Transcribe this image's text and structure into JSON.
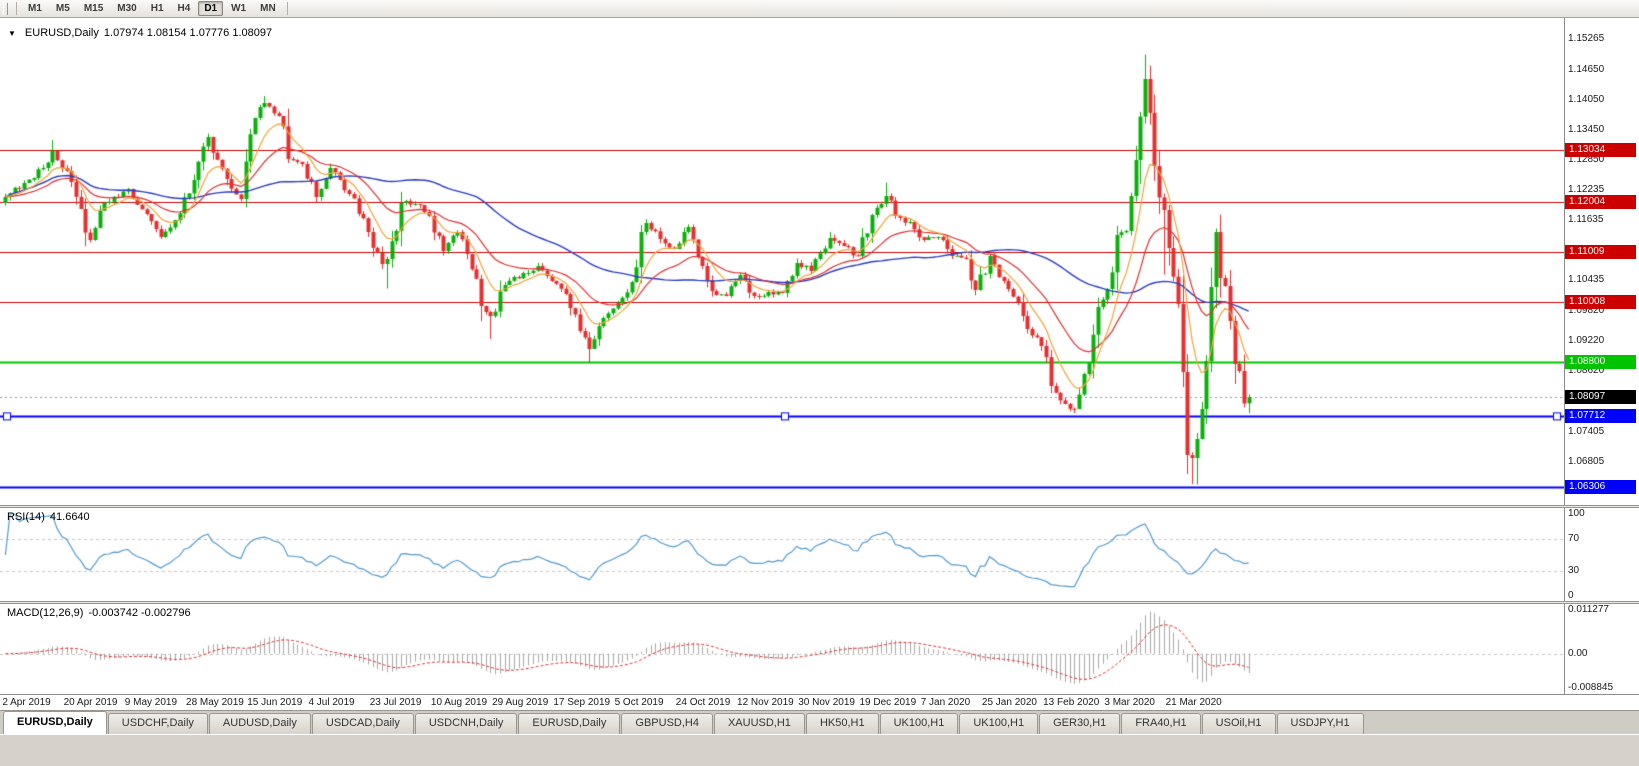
{
  "toolbar": {
    "timeframes": [
      "M1",
      "M5",
      "M15",
      "M30",
      "H1",
      "H4",
      "D1",
      "W1",
      "MN"
    ],
    "active_timeframe": "D1"
  },
  "chart_header": {
    "symbol": "EURUSD,Daily",
    "ohlc": "1.07974 1.08154 1.07776 1.08097"
  },
  "indicators": {
    "rsi_title": "RSI(14)",
    "rsi_value": "41.6640",
    "macd_title": "MACD(12,26,9)",
    "macd_value": "-0.003742 -0.002796"
  },
  "axes": {
    "price_ticks": [
      "1.15265",
      "1.14650",
      "1.14050",
      "1.13450",
      "1.12850",
      "1.12235",
      "1.11635",
      "1.10435",
      "1.09820",
      "1.09220",
      "1.08620",
      "1.07405",
      "1.06805"
    ],
    "rsi_ticks": [
      "100",
      "70",
      "30",
      "0"
    ],
    "macd_ticks": [
      "0.011277",
      "0.00",
      "-0.008845"
    ],
    "dates": [
      "2 Apr 2019",
      "20 Apr 2019",
      "9 May 2019",
      "28 May 2019",
      "15 Jun 2019",
      "4 Jul 2019",
      "23 Jul 2019",
      "10 Aug 2019",
      "29 Aug 2019",
      "17 Sep 2019",
      "5 Oct 2019",
      "24 Oct 2019",
      "12 Nov 2019",
      "30 Nov 2019",
      "19 Dec 2019",
      "7 Jan 2020",
      "25 Jan 2020",
      "13 Feb 2020",
      "3 Mar 2020",
      "21 Mar 2020"
    ]
  },
  "levels": [
    {
      "price": 1.13034,
      "label": "1.13034",
      "color": "#cc0000",
      "width": 1,
      "selected": false
    },
    {
      "price": 1.12004,
      "label": "1.12004",
      "color": "#cc0000",
      "width": 1,
      "selected": false
    },
    {
      "price": 1.11009,
      "label": "1.11009",
      "color": "#cc0000",
      "width": 1,
      "selected": false
    },
    {
      "price": 1.10008,
      "label": "1.10008",
      "color": "#cc0000",
      "width": 1,
      "selected": false
    },
    {
      "price": 1.088,
      "label": "1.08800",
      "color": "#00c400",
      "width": 2,
      "selected": false
    },
    {
      "price": 1.07712,
      "label": "1.07712",
      "color": "#0000ff",
      "width": 2,
      "selected": true
    },
    {
      "price": 1.06306,
      "label": "1.06306",
      "color": "#0000ff",
      "width": 2,
      "selected": false
    }
  ],
  "current_price": {
    "value": 1.08097,
    "label": "1.08097"
  },
  "colors": {
    "candle_up": "#0cb00c",
    "candle_down": "#e53030",
    "ma_fast": "#f2a33c",
    "ma_medium": "#e03030",
    "ma_slow": "#2b3dc4",
    "rsi_line": "#529bd2",
    "macd_hist": "#a9a9a9",
    "macd_signal": "#e03030",
    "badge_current_bg": "#000000"
  },
  "chart_data": {
    "type": "candlestick",
    "symbol": "EURUSD",
    "timeframe": "Daily",
    "candles_total": 265,
    "price_path": [
      [
        0,
        1.121
      ],
      [
        4,
        1.1238
      ],
      [
        8,
        1.1268
      ],
      [
        10,
        1.1302
      ],
      [
        13,
        1.1262
      ],
      [
        16,
        1.1186
      ],
      [
        18,
        1.1124
      ],
      [
        21,
        1.1198
      ],
      [
        26,
        1.1226
      ],
      [
        30,
        1.1176
      ],
      [
        33,
        1.113
      ],
      [
        36,
        1.1164
      ],
      [
        40,
        1.1244
      ],
      [
        43,
        1.133
      ],
      [
        47,
        1.1246
      ],
      [
        50,
        1.1206
      ],
      [
        53,
        1.1368
      ],
      [
        55,
        1.1398
      ],
      [
        58,
        1.1372
      ],
      [
        60,
        1.1286
      ],
      [
        63,
        1.1276
      ],
      [
        66,
        1.121
      ],
      [
        69,
        1.1268
      ],
      [
        73,
        1.1216
      ],
      [
        77,
        1.114
      ],
      [
        80,
        1.1076
      ],
      [
        81,
        1.1086
      ],
      [
        84,
        1.1198
      ],
      [
        88,
        1.1194
      ],
      [
        90,
        1.1172
      ],
      [
        93,
        1.1102
      ],
      [
        96,
        1.114
      ],
      [
        98,
        1.1096
      ],
      [
        101,
        1.0992
      ],
      [
        103,
        1.0972
      ],
      [
        106,
        1.1034
      ],
      [
        110,
        1.1058
      ],
      [
        113,
        1.1072
      ],
      [
        116,
        1.1042
      ],
      [
        119,
        1.1016
      ],
      [
        122,
        1.0942
      ],
      [
        124,
        1.0906
      ],
      [
        127,
        1.0968
      ],
      [
        130,
        1.0998
      ],
      [
        133,
        1.104
      ],
      [
        136,
        1.1158
      ],
      [
        139,
        1.1126
      ],
      [
        142,
        1.1106
      ],
      [
        145,
        1.115
      ],
      [
        148,
        1.1072
      ],
      [
        150,
        1.1022
      ],
      [
        153,
        1.1012
      ],
      [
        156,
        1.1054
      ],
      [
        159,
        1.1012
      ],
      [
        162,
        1.102
      ],
      [
        165,
        1.1018
      ],
      [
        168,
        1.1078
      ],
      [
        171,
        1.1062
      ],
      [
        175,
        1.1128
      ],
      [
        178,
        1.1112
      ],
      [
        181,
        1.1092
      ],
      [
        184,
        1.1174
      ],
      [
        187,
        1.1212
      ],
      [
        189,
        1.1172
      ],
      [
        192,
        1.116
      ],
      [
        195,
        1.1124
      ],
      [
        198,
        1.113
      ],
      [
        201,
        1.1092
      ],
      [
        204,
        1.1086
      ],
      [
        206,
        1.1024
      ],
      [
        209,
        1.1092
      ],
      [
        212,
        1.1042
      ],
      [
        215,
        1.1
      ],
      [
        217,
        1.0946
      ],
      [
        220,
        1.0912
      ],
      [
        222,
        1.0832
      ],
      [
        225,
        1.0796
      ],
      [
        227,
        1.0786
      ],
      [
        229,
        1.0856
      ],
      [
        232,
        1.099
      ],
      [
        234,
        1.1026
      ],
      [
        236,
        1.1134
      ],
      [
        238,
        1.1142
      ],
      [
        240,
        1.1284
      ],
      [
        242,
        1.1446
      ],
      [
        244,
        1.1272
      ],
      [
        246,
        1.1184
      ],
      [
        247,
        1.1108
      ],
      [
        249,
        1.0996
      ],
      [
        250,
        1.086
      ],
      [
        251,
        1.0694
      ],
      [
        252,
        1.0688
      ],
      [
        253,
        1.0726
      ],
      [
        254,
        1.0786
      ],
      [
        255,
        1.0882
      ],
      [
        256,
        1.103
      ],
      [
        257,
        1.114
      ],
      [
        258,
        1.1048
      ],
      [
        259,
        1.1032
      ],
      [
        260,
        1.0962
      ],
      [
        261,
        1.0876
      ],
      [
        262,
        1.0862
      ],
      [
        263,
        1.0797
      ],
      [
        264,
        1.08097
      ]
    ],
    "wick_overrides": [
      [
        10,
        "h",
        1.1324
      ],
      [
        55,
        "h",
        1.1412
      ],
      [
        81,
        "l",
        1.1027
      ],
      [
        103,
        "l",
        1.0926
      ],
      [
        124,
        "l",
        1.0879
      ],
      [
        187,
        "h",
        1.1239
      ],
      [
        227,
        "l",
        1.0778
      ],
      [
        242,
        "h",
        1.1495
      ],
      [
        246,
        "l",
        1.1055
      ],
      [
        251,
        "l",
        1.0656
      ],
      [
        252,
        "l",
        1.0636
      ],
      [
        253,
        "l",
        1.0635
      ],
      [
        257,
        "h",
        1.1147
      ]
    ],
    "last_candle": {
      "o": 1.07974,
      "h": 1.08154,
      "l": 1.07776,
      "c": 1.08097
    },
    "moving_averages": [
      {
        "name": "fast",
        "type": "ema",
        "period": 8,
        "color": "#f2a33c"
      },
      {
        "name": "medium",
        "type": "ema",
        "period": 21,
        "color": "#e03030"
      },
      {
        "name": "slow",
        "type": "sma",
        "period": 50,
        "color": "#2b3dc4"
      }
    ],
    "rsi": {
      "period": 14,
      "current": 41.664,
      "levels": [
        70,
        30
      ],
      "range": [
        0,
        100
      ]
    },
    "macd": {
      "fast": 12,
      "slow": 26,
      "signal": 9,
      "current_macd": -0.003742,
      "current_signal": -0.002796
    },
    "scale": {
      "price_min": 1.0592,
      "price_max": 1.1568,
      "macd_max": 0.011277,
      "macd_min": -0.008845
    }
  },
  "tabs": [
    {
      "label": "EURUSD,Daily",
      "active": true
    },
    {
      "label": "USDCHF,Daily",
      "active": false
    },
    {
      "label": "AUDUSD,Daily",
      "active": false
    },
    {
      "label": "USDCAD,Daily",
      "active": false
    },
    {
      "label": "USDCNH,Daily",
      "active": false
    },
    {
      "label": "EURUSD,Daily",
      "active": false
    },
    {
      "label": "GBPUSD,H4",
      "active": false
    },
    {
      "label": "XAUUSD,H1",
      "active": false
    },
    {
      "label": "HK50,H1",
      "active": false
    },
    {
      "label": "UK100,H1",
      "active": false
    },
    {
      "label": "UK100,H1",
      "active": false
    },
    {
      "label": "GER30,H1",
      "active": false
    },
    {
      "label": "FRA40,H1",
      "active": false
    },
    {
      "label": "USOil,H1",
      "active": false
    },
    {
      "label": "USDJPY,H1",
      "active": false
    }
  ]
}
